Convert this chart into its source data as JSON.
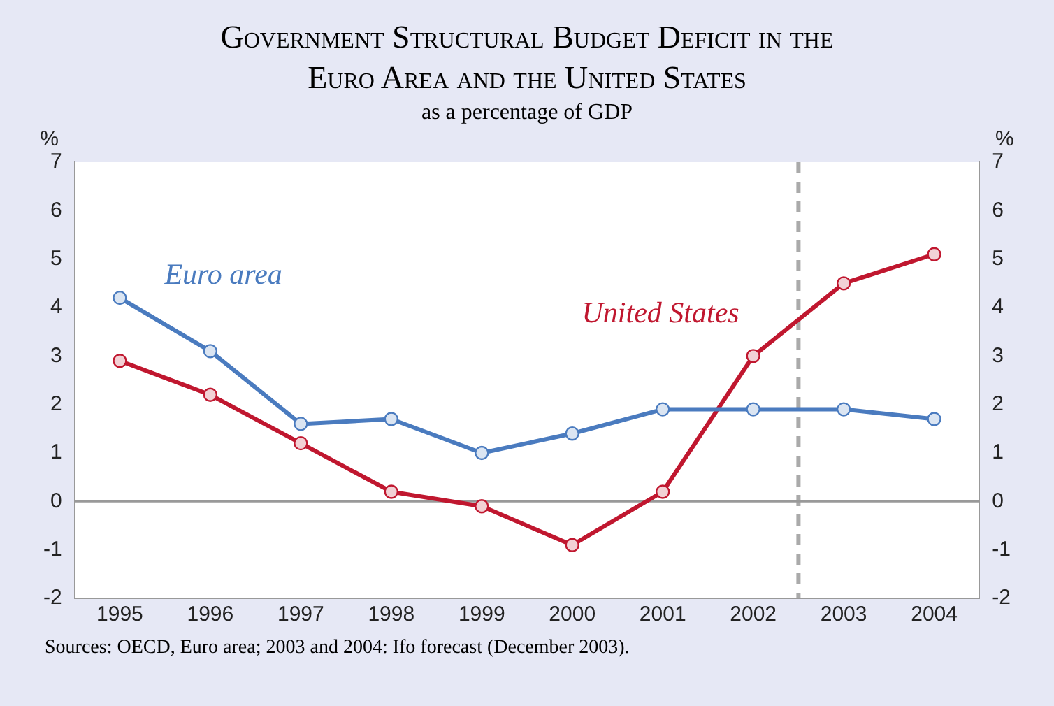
{
  "chart_data": {
    "type": "line",
    "title": "Government Structural Budget Deficit in the Euro Area and the United States",
    "subtitle": "as a percentage of GDP",
    "x": [
      1995,
      1996,
      1997,
      1998,
      1999,
      2000,
      2001,
      2002,
      2003,
      2004
    ],
    "xlim": [
      1994.5,
      2004.5
    ],
    "xticks": [
      1995,
      1996,
      1997,
      1998,
      1999,
      2000,
      2001,
      2002,
      2003,
      2004
    ],
    "ylabel": "%",
    "y2label": "%",
    "ylim": [
      -2,
      7
    ],
    "yticks": [
      -2,
      -1,
      0,
      1,
      2,
      3,
      4,
      5,
      6,
      7
    ],
    "y2lim": [
      -2,
      7
    ],
    "y2ticks": [
      -2,
      -1,
      0,
      1,
      2,
      3,
      4,
      5,
      6,
      7
    ],
    "series": [
      {
        "name": "Euro area",
        "color": "#4a7bbf",
        "values": [
          4.2,
          3.1,
          1.6,
          1.7,
          1.0,
          1.4,
          1.9,
          1.9,
          1.9,
          1.7
        ]
      },
      {
        "name": "United States",
        "color": "#c0172f",
        "values": [
          2.9,
          2.2,
          1.2,
          0.2,
          -0.1,
          -0.9,
          0.2,
          3.0,
          4.5,
          5.1
        ]
      }
    ],
    "ref_lines": [
      {
        "axis": "x",
        "value": 2002.5,
        "color": "#aaaaaa",
        "line_style": "dashed"
      },
      {
        "axis": "y",
        "value": 0,
        "color": "#999999",
        "line_style": "solid"
      }
    ],
    "marker": "circle",
    "line_style": "solid",
    "grid": false,
    "legend": false,
    "annotations": [
      "Sources: OECD, Euro area; 2003 and 2004: Ifo forecast (December 2003)."
    ]
  }
}
